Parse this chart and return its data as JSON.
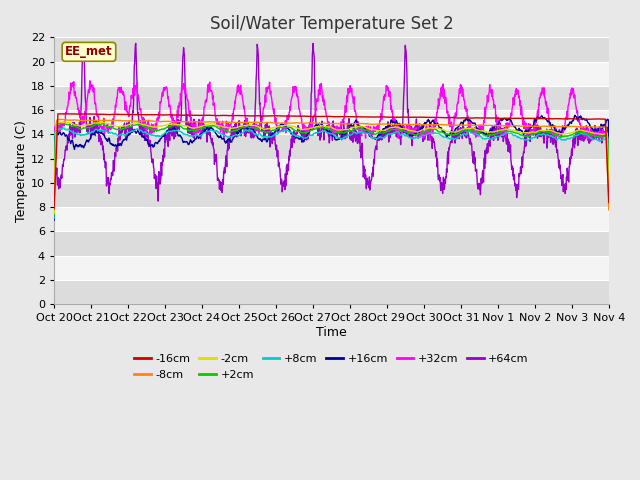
{
  "title": "Soil/Water Temperature Set 2",
  "xlabel": "Time",
  "ylabel": "Temperature (C)",
  "ylim": [
    0,
    22
  ],
  "yticks": [
    0,
    2,
    4,
    6,
    8,
    10,
    12,
    14,
    16,
    18,
    20,
    22
  ],
  "x_labels": [
    "Oct 20",
    "Oct 21",
    "Oct 22",
    "Oct 23",
    "Oct 24",
    "Oct 25",
    "Oct 26",
    "Oct 27",
    "Oct 28",
    "Oct 29",
    "Oct 30",
    "Oct 31",
    "Nov 1",
    "Nov 2",
    "Nov 3",
    "Nov 4"
  ],
  "annotation_label": "EE_met",
  "colors": {
    "-16cm": "#cc0000",
    "-8cm": "#ff8800",
    "-2cm": "#dddd00",
    "+2cm": "#00cc00",
    "+8cm": "#00cccc",
    "+16cm": "#000099",
    "+32cm": "#ff00ff",
    "+64cm": "#9900cc"
  },
  "legend_order": [
    "-16cm",
    "-8cm",
    "-2cm",
    "+2cm",
    "+8cm",
    "+16cm",
    "+32cm",
    "+64cm"
  ],
  "n_points": 1440,
  "background_color": "#e8e8e8",
  "plot_bg_light": "#f4f4f4",
  "plot_bg_dark": "#dcdcdc",
  "grid_color": "#ffffff",
  "title_fontsize": 12,
  "axis_fontsize": 9,
  "tick_fontsize": 8
}
